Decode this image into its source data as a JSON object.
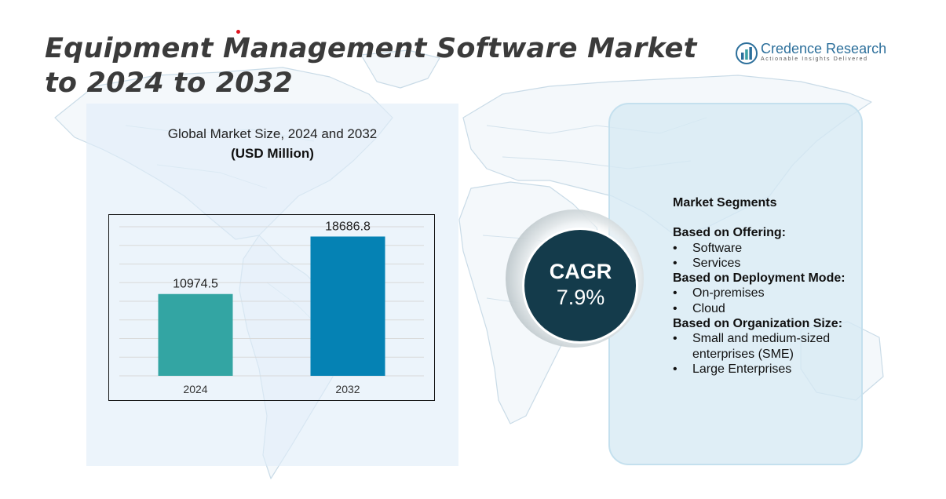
{
  "title": "Equipment Management Software Market to 2024 to 2032",
  "logo": {
    "name": "Credence Research",
    "tagline": "Actionable Insights Delivered"
  },
  "chart_data": {
    "type": "bar",
    "title": "Global Market Size, 2024 and 2032",
    "unit": "(USD Million)",
    "categories": [
      "2024",
      "2032"
    ],
    "values": [
      10974.5,
      18686.8
    ],
    "data_labels": [
      "10974.5",
      "18686.8"
    ],
    "colors": [
      "#33a5a3",
      "#0582b4"
    ],
    "grid": true,
    "ylim": [
      0,
      20000
    ]
  },
  "cagr": {
    "label": "CAGR",
    "value": "7.9%"
  },
  "segments": {
    "heading": "Market Segments",
    "groups": [
      {
        "title": "Based on Offering:",
        "items": [
          "Software",
          "Services"
        ]
      },
      {
        "title": "Based on Deployment Mode:",
        "items": [
          "On-premises",
          "Cloud"
        ]
      },
      {
        "title": "Based on Organization Size:",
        "items": [
          "Small and medium-sized enterprises (SME)",
          "Large Enterprises"
        ]
      }
    ]
  },
  "colors": {
    "title_text": "#3b3b3b",
    "cagr_circle": "#143b4b",
    "panel_left": "#e1eef8",
    "panel_right": "#d6e9f4",
    "map_lines": "#c9dbe7"
  }
}
